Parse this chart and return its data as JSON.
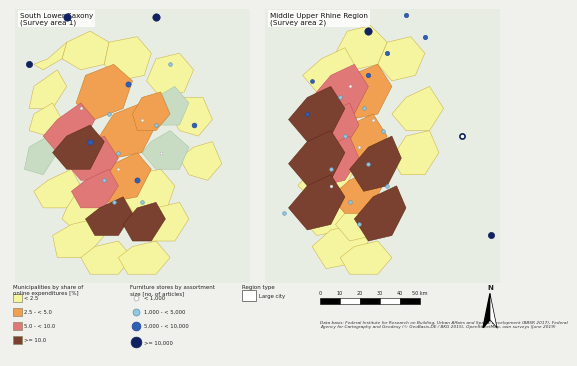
{
  "title_left": "South Lower Saxony\n(Survey area 1)",
  "title_right": "Middle Upper Rhine Region\n(Survey area 2)",
  "fig_bg": "#f0f0ec",
  "map_bg": "#dce8d8",
  "terrain_bg": "#e8ede4",
  "legend_title1": "Municipalities by share of\nonline expenditures [%]",
  "legend_title2": "Furniture stores by assortment\nsize [no. of articles]",
  "legend_title3": "Region type",
  "muni_colors": [
    "#f5f5a0",
    "#f0a050",
    "#e07878",
    "#7a4030"
  ],
  "muni_edge": "#c8b040",
  "muni_labels": [
    "< 2.5",
    "2.5 - < 5.0",
    "5.0 - < 10.0",
    ">= 10.0"
  ],
  "store_colors": [
    "#ffffff",
    "#90c8e0",
    "#3060b0",
    "#102060"
  ],
  "store_edge": [
    "#aaaaaa",
    "#6090b0",
    "#2040a0",
    "#102060"
  ],
  "store_labels": [
    "< 1,000",
    "1,000 - < 5,000",
    "5,000 - < 10,000",
    ">= 10,000"
  ],
  "store_sizes_legend": [
    4,
    7,
    10,
    14
  ],
  "datasource": "Data basis: Federal Institute for Research on Building, Urban Affairs and Spatial Development (BBSR 2017), Federal\nAgency for Cartography and Geodesy (© GeoBasis-DE / BKG 2015), OpenStreetMap, own surveys (June 2019)"
}
